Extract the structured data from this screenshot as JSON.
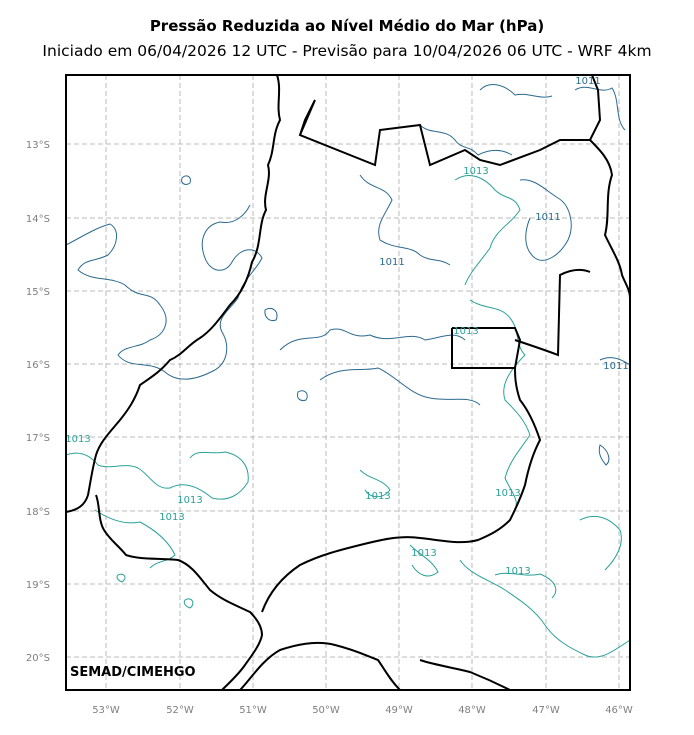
{
  "title": "Pressão Reduzida ao Nível Médio do Mar (hPa)",
  "subtitle": "Iniciado em 06/04/2026 12 UTC - Previsão para 10/04/2026 06 UTC - WRF 4km",
  "watermark": "SEMAD/CIMEHGO",
  "x_ticks": [
    "53°W",
    "52°W",
    "51°W",
    "50°W",
    "49°W",
    "48°W",
    "47°W",
    "46°W"
  ],
  "y_ticks": [
    "13°S",
    "14°S",
    "15°S",
    "16°S",
    "17°S",
    "18°S",
    "19°S",
    "20°S"
  ],
  "contour_labels": [
    {
      "text": "1011",
      "color": "#2b6a8e"
    },
    {
      "text": "1011",
      "color": "#2b6a8e"
    },
    {
      "text": "1011",
      "color": "#2b6a8e"
    },
    {
      "text": "1011",
      "color": "#2b6a8e"
    },
    {
      "text": "1013",
      "color": "#2aa198"
    },
    {
      "text": "1013",
      "color": "#2aa198"
    },
    {
      "text": "1013",
      "color": "#2aa198"
    },
    {
      "text": "1013",
      "color": "#2aa198"
    },
    {
      "text": "1013",
      "color": "#2aa198"
    },
    {
      "text": "1013",
      "color": "#2aa198"
    },
    {
      "text": "1013",
      "color": "#2aa198"
    },
    {
      "text": "1013",
      "color": "#2aa198"
    },
    {
      "text": "1013",
      "color": "#2aa198"
    }
  ],
  "colors": {
    "isobar_1011": "#2b6a8e",
    "isobar_1013": "#2aa198",
    "grid": "#bbbbbb",
    "border": "#000000"
  }
}
